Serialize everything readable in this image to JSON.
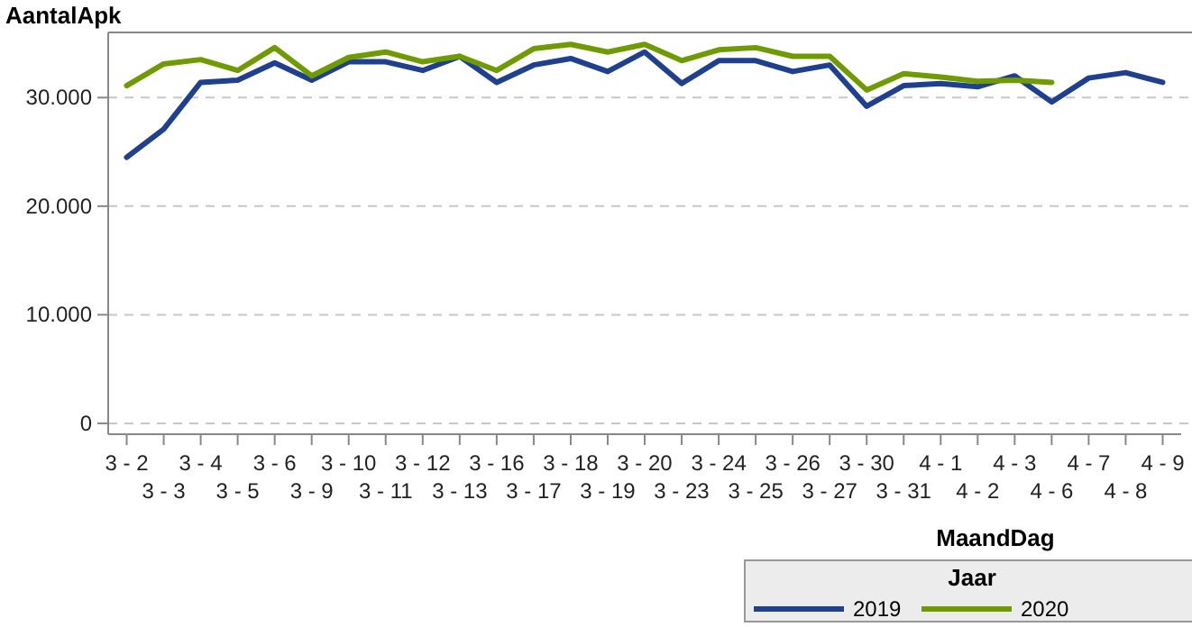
{
  "chart_data": {
    "type": "line",
    "ylabel": "AantalApk",
    "xlabel": "MaandDag",
    "legend_title": "Jaar",
    "legend": "bottom right",
    "grid": "y",
    "line_style": "solid",
    "marker": "none",
    "categories": [
      "3 - 2",
      "3 - 3",
      "3 - 4",
      "3 - 5",
      "3 - 6",
      "3 - 9",
      "3 - 10",
      "3 - 11",
      "3 - 12",
      "3 - 13",
      "3 - 16",
      "3 - 17",
      "3 - 18",
      "3 - 19",
      "3 - 20",
      "3 - 23",
      "3 - 24",
      "3 - 25",
      "3 - 26",
      "3 - 27",
      "3 - 30",
      "3 - 31",
      "4 - 1",
      "4 - 2",
      "4 - 3",
      "4 - 6",
      "4 - 7",
      "4 - 8",
      "4 - 9"
    ],
    "ylim": [
      -1000,
      36000
    ],
    "yticks": [
      {
        "value": 0,
        "label": "0"
      },
      {
        "value": 10000,
        "label": "10.000"
      },
      {
        "value": 20000,
        "label": "20.000"
      },
      {
        "value": 30000,
        "label": "30.000"
      }
    ],
    "series": [
      {
        "name": "2019",
        "color": "#1f3f8f",
        "values": [
          24500,
          27100,
          31400,
          31600,
          33200,
          31600,
          33300,
          33300,
          32500,
          33800,
          31400,
          33000,
          33600,
          32400,
          34200,
          31300,
          33400,
          33400,
          32400,
          33000,
          29200,
          31100,
          31300,
          31000,
          32000,
          29600,
          31800,
          32300,
          31400
        ]
      },
      {
        "name": "2020",
        "color": "#6f9a00",
        "values": [
          31100,
          33100,
          33500,
          32500,
          34600,
          32000,
          33700,
          34200,
          33300,
          33800,
          32500,
          34500,
          34900,
          34200,
          34900,
          33400,
          34400,
          34600,
          33800,
          33800,
          30700,
          32200,
          31900,
          31500,
          31600,
          31400,
          null,
          null,
          null
        ]
      }
    ]
  }
}
